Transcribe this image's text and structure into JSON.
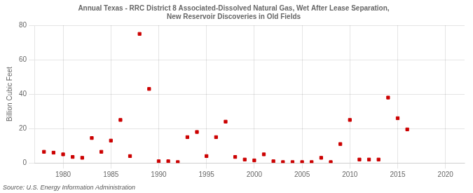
{
  "chart_data": {
    "type": "scatter",
    "title": "Annual Texas - RRC District 8 Associated-Dissolved Natural Gas, Wet After Lease Separation,\nNew Reservoir Discoveries in Old Fields",
    "y_label": "Billion Cubic Feet",
    "source": "Source: U.S. Energy Information Administration",
    "x": [
      1978,
      1979,
      1980,
      1981,
      1982,
      1983,
      1984,
      1985,
      1986,
      1987,
      1988,
      1989,
      1990,
      1991,
      1992,
      1993,
      1994,
      1995,
      1996,
      1997,
      1998,
      1999,
      2000,
      2001,
      2002,
      2003,
      2004,
      2005,
      2006,
      2007,
      2008,
      2009,
      2010,
      2011,
      2012,
      2013,
      2014,
      2015,
      2016
    ],
    "values": [
      6.5,
      6.0,
      5.0,
      3.5,
      3.0,
      14.5,
      6.5,
      13.0,
      25.0,
      4.0,
      75.0,
      43.0,
      1.0,
      1.0,
      0.5,
      15.0,
      18.0,
      4.0,
      15.0,
      24.0,
      3.5,
      2.0,
      1.5,
      5.0,
      1.0,
      0.5,
      0.5,
      0.5,
      0.5,
      3.0,
      0.5,
      11.0,
      25.0,
      2.0,
      2.0,
      2.0,
      38.0,
      26.0,
      19.5
    ],
    "color": "#cc0000",
    "marker": "square",
    "xlim": [
      1977,
      2022
    ],
    "xticks": [
      1980,
      1985,
      1990,
      1995,
      2000,
      2005,
      2010,
      2015,
      2020
    ],
    "ylim": [
      0,
      80
    ],
    "yticks": [
      0,
      20,
      40,
      60,
      80
    ],
    "grid": true
  }
}
